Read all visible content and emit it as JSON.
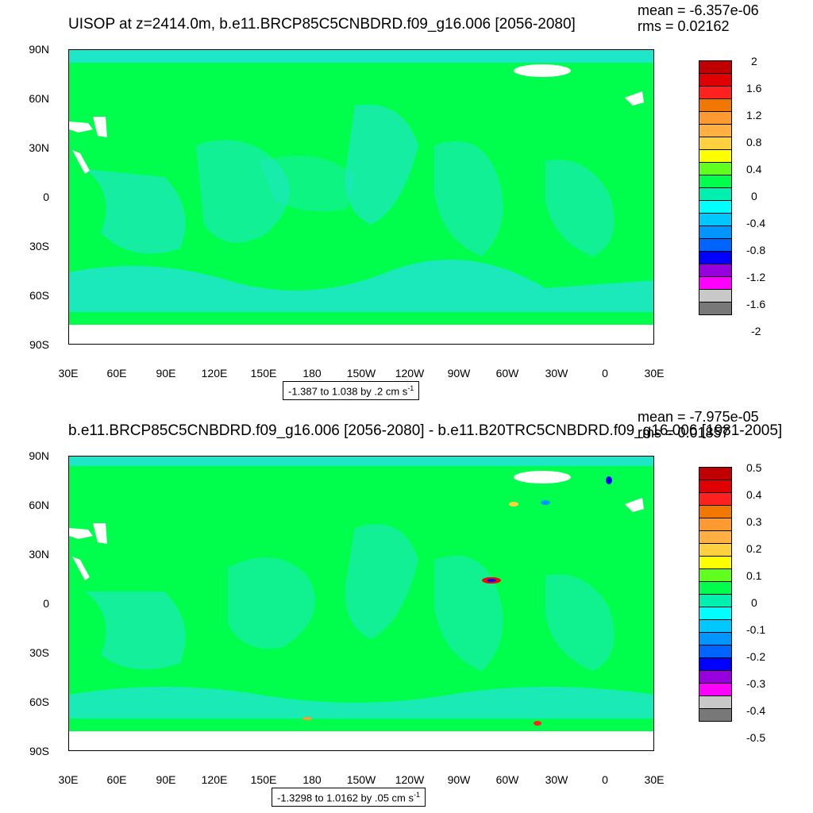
{
  "panels": [
    {
      "title": "UISOP at z=2414.0m, b.e11.BRCP85C5CNBDRD.f09_g16.006 [2056-2080]",
      "mean": "mean = -6.357e-06",
      "rms": "rms = 0.02162",
      "lat_labels": [
        "90N",
        "60N",
        "30N",
        "0",
        "30S",
        "60S",
        "90S"
      ],
      "lon_labels": [
        "30E",
        "60E",
        "90E",
        "120E",
        "150E",
        "180",
        "150W",
        "120W",
        "90W",
        "60W",
        "30W",
        "0",
        "30E"
      ],
      "colorbar_labels": [
        "2",
        "1.6",
        "1.2",
        "0.8",
        "0.4",
        "0",
        "-0.4",
        "-0.8",
        "-1.2",
        "-1.6",
        "-2"
      ],
      "caption": "-1.387 to 1.038 by .2 cm s",
      "caption_sup": "-1"
    },
    {
      "title": "b.e11.BRCP85C5CNBDRD.f09_g16.006 [2056-2080] - b.e11.B20TRC5CNBDRD.f09_g16.006 [1981-2005]",
      "mean": "mean = -7.975e-05",
      "rms": "rms = 0.01857",
      "lat_labels": [
        "90N",
        "60N",
        "30N",
        "0",
        "30S",
        "60S",
        "90S"
      ],
      "lon_labels": [
        "30E",
        "60E",
        "90E",
        "120E",
        "150E",
        "180",
        "150W",
        "120W",
        "90W",
        "60W",
        "30W",
        "0",
        "30E"
      ],
      "colorbar_labels": [
        "0.5",
        "0.4",
        "0.3",
        "0.2",
        "0.1",
        "0",
        "-0.1",
        "-0.2",
        "-0.3",
        "-0.4",
        "-0.5"
      ],
      "caption": "-1.3298 to 1.0162 by .05 cm s",
      "caption_sup": "-1"
    }
  ],
  "colors": {
    "ocean_main": "#00ff4c",
    "ocean_light": "#1ee6c8",
    "land": "#ffffff",
    "scale": [
      "#c00000",
      "#e00000",
      "#ff2020",
      "#f07800",
      "#ff9a30",
      "#ffb040",
      "#ffd040",
      "#ffff00",
      "#60ff20",
      "#00ff4c",
      "#00f0b0",
      "#00ffff",
      "#00c8ff",
      "#0096ff",
      "#0064ff",
      "#0000ff",
      "#9600dc",
      "#ff00ff",
      "#c8c8c8",
      "#787878"
    ]
  }
}
